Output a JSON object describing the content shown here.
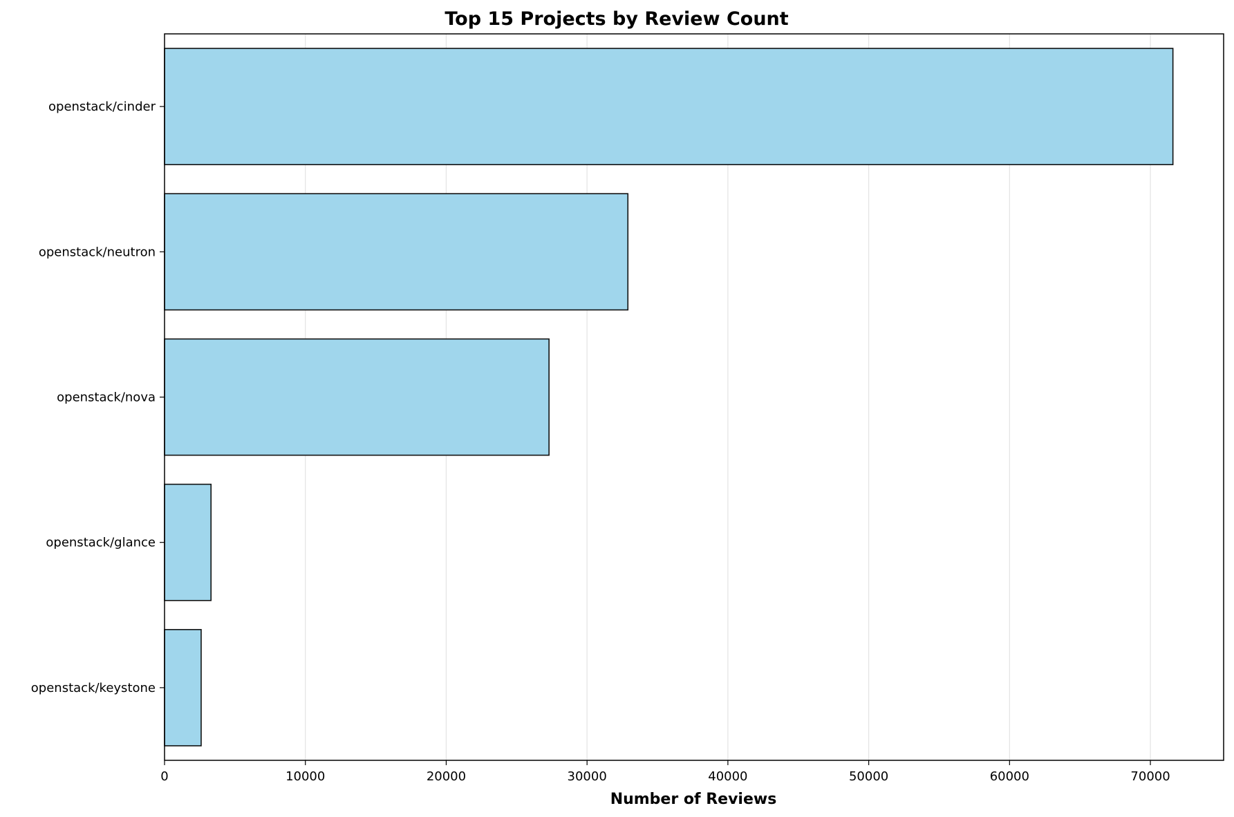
{
  "chart_data": {
    "type": "bar",
    "orientation": "horizontal",
    "title": "Top 15 Projects by Review Count",
    "xlabel": "Number of Reviews",
    "ylabel": "",
    "categories": [
      "openstack/cinder",
      "openstack/neutron",
      "openstack/nova",
      "openstack/glance",
      "openstack/keystone"
    ],
    "values": [
      71600,
      32900,
      27300,
      3300,
      2600
    ],
    "xlim": [
      0,
      75200
    ],
    "xticks": [
      0,
      10000,
      20000,
      30000,
      40000,
      50000,
      60000,
      70000
    ],
    "xtick_labels": [
      "0",
      "10000",
      "20000",
      "30000",
      "40000",
      "50000",
      "60000",
      "70000"
    ],
    "grid": "x-axis vertical lines",
    "bar_color": "#a0d6ec",
    "bar_edge_color": "#111111"
  }
}
